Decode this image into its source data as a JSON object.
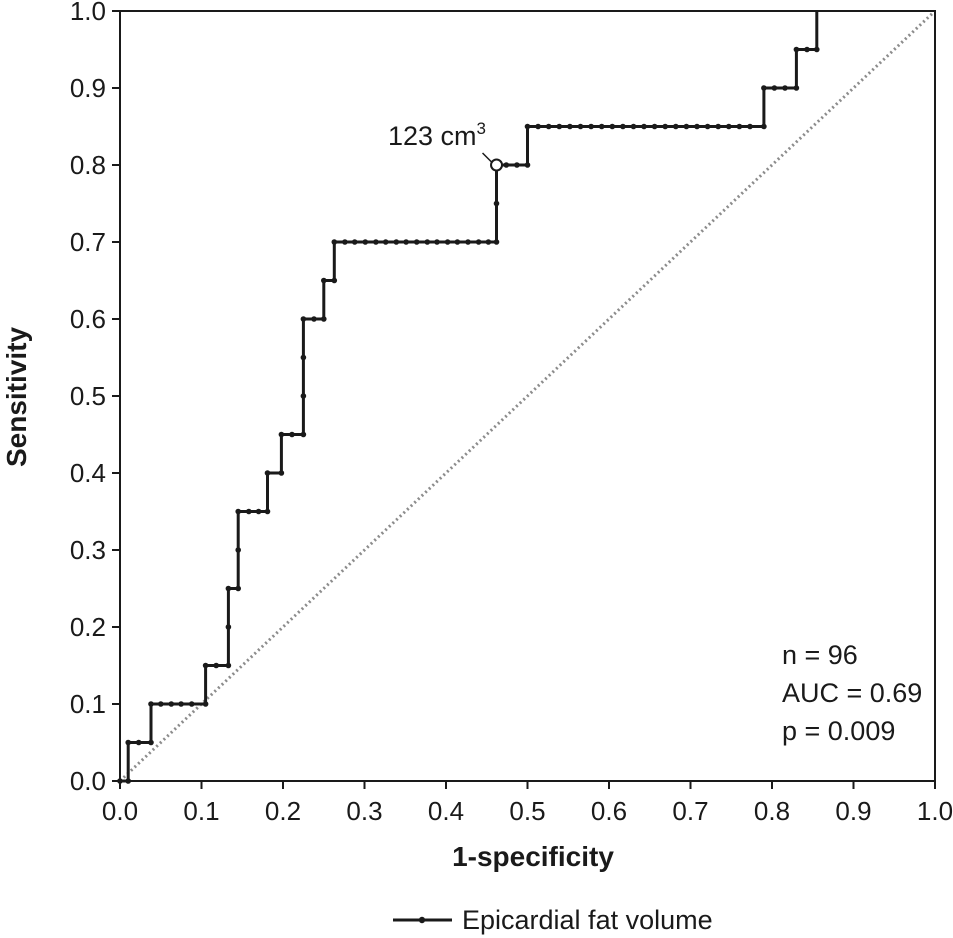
{
  "chart_data": {
    "type": "line",
    "xlabel": "1-specificity",
    "ylabel": "Sensitivity",
    "xlim": [
      0,
      1
    ],
    "ylim": [
      0,
      1
    ],
    "xticks": [
      "0.0",
      "0.1",
      "0.2",
      "0.3",
      "0.4",
      "0.5",
      "0.6",
      "0.7",
      "0.8",
      "0.9",
      "1.0"
    ],
    "yticks": [
      "0.0",
      "0.1",
      "0.2",
      "0.3",
      "0.4",
      "0.5",
      "0.6",
      "0.7",
      "0.8",
      "0.9",
      "1.0"
    ],
    "grid": false,
    "legend_position": "bottom",
    "series": [
      {
        "name": "Epicardial fat volume",
        "color": "#1a1a1a",
        "step_points": [
          [
            0.0,
            0.0
          ],
          [
            0.01,
            0.0
          ],
          [
            0.01,
            0.05
          ],
          [
            0.038,
            0.05
          ],
          [
            0.038,
            0.1
          ],
          [
            0.105,
            0.1
          ],
          [
            0.105,
            0.15
          ],
          [
            0.133,
            0.15
          ],
          [
            0.133,
            0.25
          ],
          [
            0.145,
            0.25
          ],
          [
            0.145,
            0.35
          ],
          [
            0.181,
            0.35
          ],
          [
            0.181,
            0.4
          ],
          [
            0.198,
            0.4
          ],
          [
            0.198,
            0.45
          ],
          [
            0.225,
            0.45
          ],
          [
            0.225,
            0.6
          ],
          [
            0.25,
            0.6
          ],
          [
            0.25,
            0.65
          ],
          [
            0.263,
            0.65
          ],
          [
            0.263,
            0.7
          ],
          [
            0.462,
            0.7
          ],
          [
            0.462,
            0.8
          ],
          [
            0.5,
            0.8
          ],
          [
            0.5,
            0.85
          ],
          [
            0.79,
            0.85
          ],
          [
            0.79,
            0.9
          ],
          [
            0.83,
            0.9
          ],
          [
            0.83,
            0.95
          ],
          [
            0.855,
            0.95
          ],
          [
            0.855,
            1.0
          ]
        ],
        "markers": [
          [
            0.0,
            0.0
          ],
          [
            0.01,
            0.0
          ],
          [
            0.01,
            0.05
          ],
          [
            0.023,
            0.05
          ],
          [
            0.038,
            0.05
          ],
          [
            0.038,
            0.1
          ],
          [
            0.05,
            0.1
          ],
          [
            0.063,
            0.1
          ],
          [
            0.075,
            0.1
          ],
          [
            0.088,
            0.1
          ],
          [
            0.105,
            0.1
          ],
          [
            0.105,
            0.15
          ],
          [
            0.118,
            0.15
          ],
          [
            0.133,
            0.15
          ],
          [
            0.133,
            0.2
          ],
          [
            0.133,
            0.25
          ],
          [
            0.145,
            0.25
          ],
          [
            0.145,
            0.3
          ],
          [
            0.145,
            0.35
          ],
          [
            0.158,
            0.35
          ],
          [
            0.17,
            0.35
          ],
          [
            0.181,
            0.35
          ],
          [
            0.181,
            0.4
          ],
          [
            0.198,
            0.4
          ],
          [
            0.198,
            0.45
          ],
          [
            0.211,
            0.45
          ],
          [
            0.225,
            0.45
          ],
          [
            0.225,
            0.5
          ],
          [
            0.225,
            0.55
          ],
          [
            0.225,
            0.6
          ],
          [
            0.238,
            0.6
          ],
          [
            0.25,
            0.6
          ],
          [
            0.25,
            0.65
          ],
          [
            0.263,
            0.65
          ],
          [
            0.263,
            0.7
          ],
          [
            0.276,
            0.7
          ],
          [
            0.288,
            0.7
          ],
          [
            0.301,
            0.7
          ],
          [
            0.314,
            0.7
          ],
          [
            0.326,
            0.7
          ],
          [
            0.339,
            0.7
          ],
          [
            0.351,
            0.7
          ],
          [
            0.364,
            0.7
          ],
          [
            0.377,
            0.7
          ],
          [
            0.389,
            0.7
          ],
          [
            0.402,
            0.7
          ],
          [
            0.414,
            0.7
          ],
          [
            0.427,
            0.7
          ],
          [
            0.44,
            0.7
          ],
          [
            0.452,
            0.7
          ],
          [
            0.462,
            0.7
          ],
          [
            0.462,
            0.75
          ],
          [
            0.474,
            0.8
          ],
          [
            0.487,
            0.8
          ],
          [
            0.5,
            0.8
          ],
          [
            0.5,
            0.85
          ],
          [
            0.513,
            0.85
          ],
          [
            0.526,
            0.85
          ],
          [
            0.539,
            0.85
          ],
          [
            0.552,
            0.85
          ],
          [
            0.565,
            0.85
          ],
          [
            0.578,
            0.85
          ],
          [
            0.591,
            0.85
          ],
          [
            0.604,
            0.85
          ],
          [
            0.617,
            0.85
          ],
          [
            0.63,
            0.85
          ],
          [
            0.643,
            0.85
          ],
          [
            0.656,
            0.85
          ],
          [
            0.669,
            0.85
          ],
          [
            0.682,
            0.85
          ],
          [
            0.695,
            0.85
          ],
          [
            0.708,
            0.85
          ],
          [
            0.721,
            0.85
          ],
          [
            0.734,
            0.85
          ],
          [
            0.747,
            0.85
          ],
          [
            0.76,
            0.85
          ],
          [
            0.773,
            0.85
          ],
          [
            0.79,
            0.85
          ],
          [
            0.79,
            0.9
          ],
          [
            0.803,
            0.9
          ],
          [
            0.816,
            0.9
          ],
          [
            0.83,
            0.9
          ],
          [
            0.83,
            0.95
          ],
          [
            0.843,
            0.95
          ],
          [
            0.855,
            0.95
          ]
        ]
      }
    ],
    "reference_line": {
      "from": [
        0,
        0
      ],
      "to": [
        1,
        1
      ],
      "style": "dotted",
      "color": "#8c8c8c"
    },
    "annotation": {
      "text": "123 cm",
      "superscript": "3",
      "x": 0.462,
      "y": 0.8
    },
    "stats": {
      "n": "n = 96",
      "auc": "AUC = 0.69",
      "p": "p = 0.009"
    },
    "legend_label": "Epicardial fat volume"
  }
}
